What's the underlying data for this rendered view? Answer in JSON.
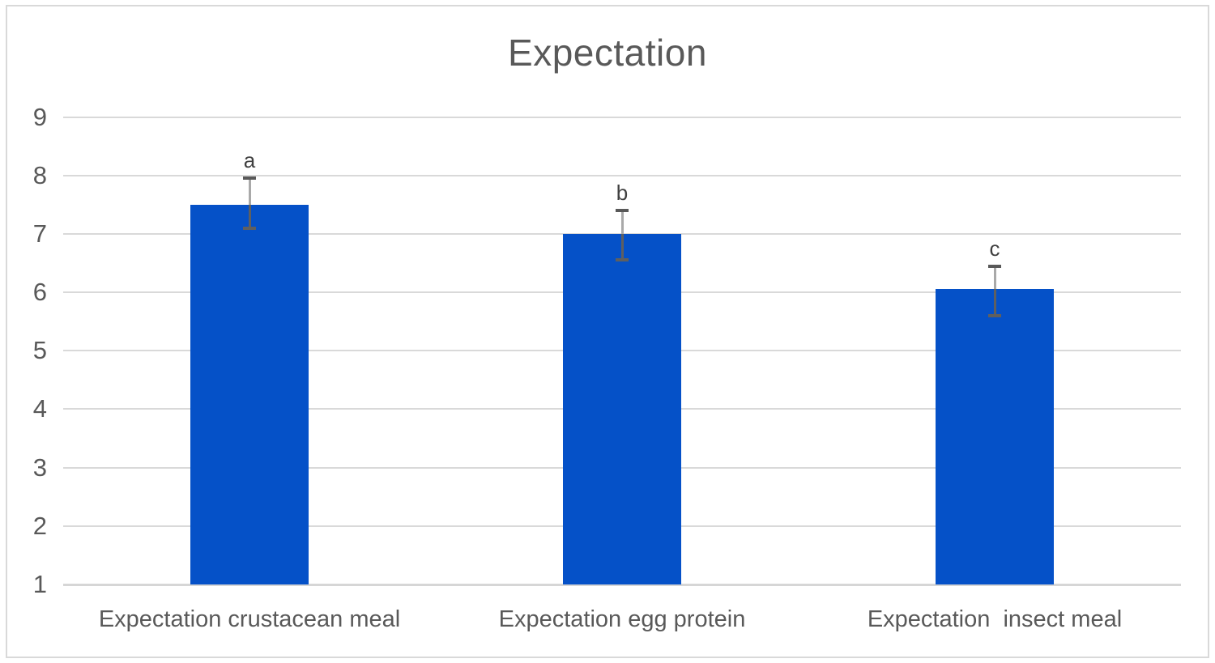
{
  "chart_data": {
    "type": "bar",
    "title": "Expectation",
    "categories": [
      "Expectation crustacean meal",
      "Expectation egg protein",
      "Expectation  insect meal"
    ],
    "values": [
      7.5,
      7.0,
      6.05
    ],
    "error_bars": {
      "low": [
        7.1,
        6.55,
        5.6
      ],
      "high": [
        7.95,
        7.4,
        6.45
      ]
    },
    "significance_letters": [
      "a",
      "b",
      "c"
    ],
    "xlabel": "",
    "ylabel": "",
    "ylim": [
      1,
      9
    ],
    "yticks": [
      1,
      2,
      3,
      4,
      5,
      6,
      7,
      8,
      9
    ],
    "grid": true,
    "legend": false,
    "colors": {
      "bar": "#0551C8",
      "gridline": "#D9D9D9",
      "axis_line": "#D6D6D6",
      "text": "#595959",
      "letter": "#404040",
      "error_line_light": "#A9A9A9",
      "error_line_dark": "#5F5F5F",
      "error_cap_top": "#595959",
      "error_cap_bottom": "#5F5F5F",
      "chart_border": "#D9D9D9",
      "background": "#FFFFFF"
    }
  }
}
